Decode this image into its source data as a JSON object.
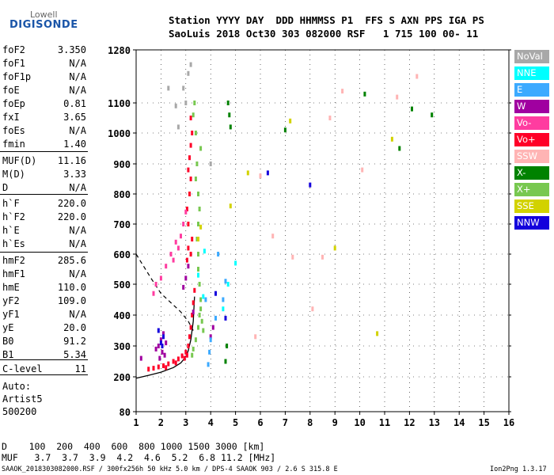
{
  "logo": {
    "line1": "Lowell",
    "line2": "DIGISONDE"
  },
  "header": {
    "row1": "Station YYYY DAY  DDD HHMMSS P1  FFS S AXN PPS IGA PS",
    "row2": "SaoLuis 2018 Oct30 303 082000 RSF   1 715 100 00- 11"
  },
  "params": [
    {
      "label": "foF2",
      "value": "3.350"
    },
    {
      "label": "foF1",
      "value": "N/A"
    },
    {
      "label": "foF1p",
      "value": "N/A"
    },
    {
      "label": "foE",
      "value": "N/A"
    },
    {
      "label": "foEp",
      "value": "0.81"
    },
    {
      "label": "fxI",
      "value": "3.65"
    },
    {
      "label": "foEs",
      "value": "N/A"
    },
    {
      "label": "fmin",
      "value": "1.40"
    },
    {
      "label": "MUF(D)",
      "value": "11.16"
    },
    {
      "label": "M(D)",
      "value": "3.33"
    },
    {
      "label": "D",
      "value": "N/A"
    },
    {
      "label": "h`F",
      "value": "220.0"
    },
    {
      "label": "h`F2",
      "value": "220.0"
    },
    {
      "label": "h`E",
      "value": "N/A"
    },
    {
      "label": "h`Es",
      "value": "N/A"
    },
    {
      "label": "hmF2",
      "value": "285.6"
    },
    {
      "label": "hmF1",
      "value": "N/A"
    },
    {
      "label": "hmE",
      "value": "110.0"
    },
    {
      "label": "yF2",
      "value": "109.0"
    },
    {
      "label": "yF1",
      "value": "N/A"
    },
    {
      "label": "yE",
      "value": "20.0"
    },
    {
      "label": "B0",
      "value": "91.2"
    },
    {
      "label": "B1",
      "value": "5.34"
    },
    {
      "label": "C-level",
      "value": "11"
    }
  ],
  "scaling": {
    "line1": "Auto:",
    "line2": "Artist5",
    "line3": "500200"
  },
  "legend": [
    {
      "label": "NoVal",
      "color": "#a8a8a8"
    },
    {
      "label": "NNE",
      "color": "#00ffff"
    },
    {
      "label": "E",
      "color": "#3caaff"
    },
    {
      "label": "W",
      "color": "#a000a0"
    },
    {
      "label": "Vo-",
      "color": "#ff3ca0"
    },
    {
      "label": "Vo+",
      "color": "#ff0028"
    },
    {
      "label": "SSW",
      "color": "#ffb4b4"
    },
    {
      "label": "X-",
      "color": "#008200"
    },
    {
      "label": "X+",
      "color": "#78c850"
    },
    {
      "label": "SSE",
      "color": "#d2d200"
    },
    {
      "label": "NNW",
      "color": "#1400dc"
    }
  ],
  "footer": {
    "d_row": "D    100  200  400  600  800 1000 1500 3000 [km]",
    "muf_row": "MUF   3.7  3.7  3.9  4.2  4.6  5.2  6.8 11.2 [MHz]",
    "info": "SAAOK_2018303082000.RSF / 300fx256h 50 kHz 5.0 km / DPS-4 SAAOK 903 / 2.6 S 315.8 E",
    "version": "Ion2Png 1.3.17"
  },
  "chart_data": {
    "type": "scatter",
    "title": "",
    "xlabel": "",
    "ylabel": "",
    "xlim": [
      1,
      16
    ],
    "ylim": [
      80,
      1280
    ],
    "x_ticks": [
      "1",
      "2",
      "3",
      "4",
      "5",
      "6",
      "7",
      "8",
      "9",
      "10",
      "11",
      "12",
      "13",
      "14",
      "15",
      "16"
    ],
    "y_ticks": [
      "80",
      "200",
      "300",
      "400",
      "500",
      "600",
      "700",
      "800",
      "900",
      "1000",
      "1100",
      "1280"
    ],
    "series": [
      {
        "name": "Vo+",
        "color": "#ff0028",
        "points": [
          [
            1.5,
            225
          ],
          [
            1.7,
            228
          ],
          [
            1.9,
            232
          ],
          [
            2.1,
            236
          ],
          [
            2.3,
            242
          ],
          [
            2.5,
            250
          ],
          [
            2.7,
            258
          ],
          [
            2.85,
            268
          ],
          [
            3.0,
            280
          ],
          [
            3.1,
            300
          ],
          [
            3.15,
            330
          ],
          [
            3.2,
            360
          ],
          [
            3.25,
            400
          ],
          [
            3.3,
            440
          ],
          [
            3.35,
            480
          ],
          [
            2.95,
            260
          ],
          [
            3.05,
            270
          ],
          [
            3.2,
            600
          ],
          [
            3.25,
            650
          ],
          [
            3.1,
            700
          ],
          [
            3.05,
            750
          ],
          [
            3.15,
            800
          ],
          [
            3.2,
            850
          ],
          [
            3.1,
            880
          ],
          [
            3.15,
            920
          ],
          [
            3.2,
            960
          ],
          [
            3.25,
            1000
          ],
          [
            3.2,
            1050
          ],
          [
            3.1,
            620
          ],
          [
            3.05,
            580
          ],
          [
            2.2,
            230
          ],
          [
            2.6,
            245
          ]
        ]
      },
      {
        "name": "X+",
        "color": "#78c850",
        "points": [
          [
            3.3,
            290
          ],
          [
            3.4,
            320
          ],
          [
            3.5,
            360
          ],
          [
            3.55,
            400
          ],
          [
            3.6,
            450
          ],
          [
            3.55,
            500
          ],
          [
            3.5,
            550
          ],
          [
            3.5,
            600
          ],
          [
            3.45,
            650
          ],
          [
            3.5,
            700
          ],
          [
            3.55,
            750
          ],
          [
            3.5,
            800
          ],
          [
            3.4,
            850
          ],
          [
            3.45,
            900
          ],
          [
            3.6,
            950
          ],
          [
            3.4,
            1000
          ],
          [
            3.3,
            1060
          ],
          [
            3.35,
            1100
          ],
          [
            3.6,
            420
          ],
          [
            3.65,
            380
          ],
          [
            3.7,
            350
          ],
          [
            3.25,
            270
          ]
        ]
      },
      {
        "name": "W",
        "color": "#a000a0",
        "points": [
          [
            1.9,
            300
          ],
          [
            2.0,
            320
          ],
          [
            2.05,
            280
          ],
          [
            2.1,
            340
          ],
          [
            1.8,
            290
          ],
          [
            2.2,
            310
          ],
          [
            1.95,
            260
          ],
          [
            2.15,
            270
          ],
          [
            3.0,
            520
          ],
          [
            3.3,
            410
          ],
          [
            2.9,
            490
          ],
          [
            3.1,
            560
          ],
          [
            4.0,
            330
          ],
          [
            4.1,
            360
          ],
          [
            1.2,
            260
          ]
        ]
      },
      {
        "name": "Vo-",
        "color": "#ff3ca0",
        "points": [
          [
            1.8,
            500
          ],
          [
            2.0,
            520
          ],
          [
            2.2,
            560
          ],
          [
            2.4,
            600
          ],
          [
            2.6,
            640
          ],
          [
            2.8,
            660
          ],
          [
            1.7,
            470
          ],
          [
            2.9,
            700
          ],
          [
            3.0,
            740
          ],
          [
            2.7,
            620
          ],
          [
            2.5,
            580
          ]
        ]
      },
      {
        "name": "NoVal",
        "color": "#a8a8a8",
        "points": [
          [
            2.3,
            1150
          ],
          [
            2.6,
            1090
          ],
          [
            2.9,
            1150
          ],
          [
            3.0,
            1100
          ],
          [
            2.7,
            1020
          ],
          [
            3.1,
            1200
          ],
          [
            3.2,
            1230
          ],
          [
            4.0,
            900
          ]
        ]
      },
      {
        "name": "X-",
        "color": "#008200",
        "points": [
          [
            4.7,
            1100
          ],
          [
            4.75,
            1060
          ],
          [
            4.8,
            1020
          ],
          [
            7.0,
            1010
          ],
          [
            10.2,
            1130
          ],
          [
            11.6,
            950
          ],
          [
            12.1,
            1080
          ],
          [
            12.9,
            1060
          ],
          [
            4.6,
            250
          ],
          [
            4.65,
            300
          ]
        ]
      },
      {
        "name": "E",
        "color": "#3caaff",
        "points": [
          [
            3.9,
            240
          ],
          [
            3.95,
            280
          ],
          [
            4.0,
            320
          ],
          [
            4.2,
            390
          ],
          [
            3.8,
            450
          ],
          [
            4.3,
            600
          ],
          [
            4.5,
            450
          ],
          [
            4.6,
            510
          ]
        ]
      },
      {
        "name": "NNE",
        "color": "#00ffff",
        "points": [
          [
            3.5,
            530
          ],
          [
            3.7,
            460
          ],
          [
            4.5,
            420
          ],
          [
            4.7,
            500
          ],
          [
            5.0,
            570
          ],
          [
            3.75,
            610
          ]
        ]
      },
      {
        "name": "SSE",
        "color": "#d2d200",
        "points": [
          [
            3.5,
            650
          ],
          [
            3.6,
            690
          ],
          [
            4.8,
            760
          ],
          [
            5.5,
            870
          ],
          [
            7.2,
            1040
          ],
          [
            9.0,
            620
          ],
          [
            10.7,
            340
          ],
          [
            11.3,
            980
          ]
        ]
      },
      {
        "name": "SSW",
        "color": "#ffb4b4",
        "points": [
          [
            5.8,
            330
          ],
          [
            6.5,
            660
          ],
          [
            7.3,
            590
          ],
          [
            8.1,
            420
          ],
          [
            8.8,
            1050
          ],
          [
            9.3,
            1140
          ],
          [
            10.1,
            880
          ],
          [
            11.5,
            1120
          ],
          [
            12.3,
            1190
          ],
          [
            6.0,
            860
          ],
          [
            8.5,
            590
          ]
        ]
      },
      {
        "name": "NNW",
        "color": "#1400dc",
        "points": [
          [
            2.0,
            310
          ],
          [
            2.1,
            330
          ],
          [
            1.9,
            350
          ],
          [
            2.05,
            300
          ],
          [
            6.3,
            870
          ],
          [
            8.0,
            830
          ],
          [
            4.2,
            470
          ],
          [
            4.6,
            390
          ]
        ]
      }
    ],
    "profile_curve": {
      "x": [
        1.0,
        1.5,
        2.0,
        2.5,
        2.8,
        3.0,
        3.1,
        3.2,
        3.3,
        3.35
      ],
      "y": [
        195,
        205,
        215,
        230,
        245,
        265,
        285,
        320,
        380,
        460
      ]
    },
    "dashed_curve": {
      "x": [
        1.0,
        1.3,
        1.6,
        2.0,
        2.4,
        2.8,
        3.1,
        3.3
      ],
      "y": [
        600,
        560,
        520,
        470,
        440,
        410,
        380,
        350
      ]
    }
  }
}
